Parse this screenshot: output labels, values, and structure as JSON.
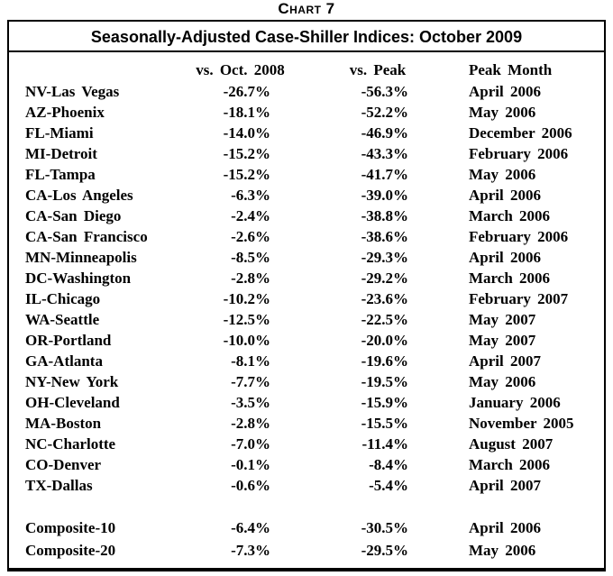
{
  "figure_label": "Chart 7",
  "colors": {
    "text": "#000000",
    "border": "#000000",
    "background": "#ffffff"
  },
  "chart_data": {
    "type": "table",
    "figure_label": "Chart 7",
    "title": "Seasonally-Adjusted Case-Shiller Indices: October 2009",
    "columns": {
      "city": "",
      "vs_oct_2008": "vs. Oct. 2008",
      "vs_peak": "vs. Peak",
      "peak_month": "Peak Month"
    },
    "rows": [
      {
        "city": "NV-Las Vegas",
        "vs_oct_2008": "-26.7%",
        "vs_peak": "-56.3%",
        "peak_month": "April 2006"
      },
      {
        "city": "AZ-Phoenix",
        "vs_oct_2008": "-18.1%",
        "vs_peak": "-52.2%",
        "peak_month": "May 2006"
      },
      {
        "city": "FL-Miami",
        "vs_oct_2008": "-14.0%",
        "vs_peak": "-46.9%",
        "peak_month": "December 2006"
      },
      {
        "city": "MI-Detroit",
        "vs_oct_2008": "-15.2%",
        "vs_peak": "-43.3%",
        "peak_month": "February 2006"
      },
      {
        "city": "FL-Tampa",
        "vs_oct_2008": "-15.2%",
        "vs_peak": "-41.7%",
        "peak_month": "May 2006"
      },
      {
        "city": "CA-Los Angeles",
        "vs_oct_2008": "-6.3%",
        "vs_peak": "-39.0%",
        "peak_month": "April 2006"
      },
      {
        "city": "CA-San Diego",
        "vs_oct_2008": "-2.4%",
        "vs_peak": "-38.8%",
        "peak_month": "March 2006"
      },
      {
        "city": "CA-San Francisco",
        "vs_oct_2008": "-2.6%",
        "vs_peak": "-38.6%",
        "peak_month": "February 2006"
      },
      {
        "city": "MN-Minneapolis",
        "vs_oct_2008": "-8.5%",
        "vs_peak": "-29.3%",
        "peak_month": "April 2006"
      },
      {
        "city": "DC-Washington",
        "vs_oct_2008": "-2.8%",
        "vs_peak": "-29.2%",
        "peak_month": "March 2006"
      },
      {
        "city": "IL-Chicago",
        "vs_oct_2008": "-10.2%",
        "vs_peak": "-23.6%",
        "peak_month": "February 2007"
      },
      {
        "city": "WA-Seattle",
        "vs_oct_2008": "-12.5%",
        "vs_peak": "-22.5%",
        "peak_month": "May 2007"
      },
      {
        "city": "OR-Portland",
        "vs_oct_2008": "-10.0%",
        "vs_peak": "-20.0%",
        "peak_month": "May 2007"
      },
      {
        "city": "GA-Atlanta",
        "vs_oct_2008": "-8.1%",
        "vs_peak": "-19.6%",
        "peak_month": "April 2007"
      },
      {
        "city": "NY-New York",
        "vs_oct_2008": "-7.7%",
        "vs_peak": "-19.5%",
        "peak_month": "May 2006"
      },
      {
        "city": "OH-Cleveland",
        "vs_oct_2008": "-3.5%",
        "vs_peak": "-15.9%",
        "peak_month": "January 2006"
      },
      {
        "city": "MA-Boston",
        "vs_oct_2008": "-2.8%",
        "vs_peak": "-15.5%",
        "peak_month": "November 2005"
      },
      {
        "city": "NC-Charlotte",
        "vs_oct_2008": "-7.0%",
        "vs_peak": "-11.4%",
        "peak_month": "August 2007"
      },
      {
        "city": "CO-Denver",
        "vs_oct_2008": "-0.1%",
        "vs_peak": "-8.4%",
        "peak_month": "March 2006"
      },
      {
        "city": "TX-Dallas",
        "vs_oct_2008": "-0.6%",
        "vs_peak": "-5.4%",
        "peak_month": "April 2007"
      }
    ],
    "composites": [
      {
        "city": "Composite-10",
        "vs_oct_2008": "-6.4%",
        "vs_peak": "-30.5%",
        "peak_month": "April 2006"
      },
      {
        "city": "Composite-20",
        "vs_oct_2008": "-7.3%",
        "vs_peak": "-29.5%",
        "peak_month": "May 2006"
      }
    ]
  }
}
